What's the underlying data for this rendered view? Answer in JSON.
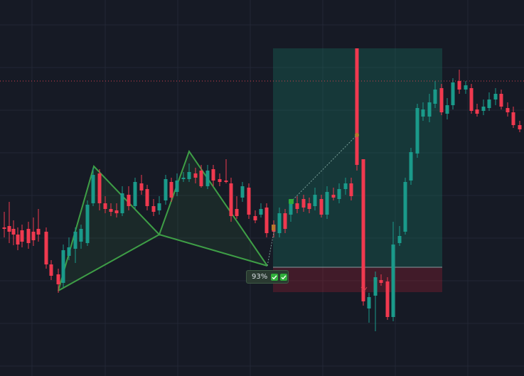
{
  "badge": {
    "confidence_label": "93%"
  },
  "icons": {
    "check": "check-icon",
    "pattern_marker": "pattern-marker-icon"
  },
  "colors": {
    "background": "#161a25",
    "grid": "#222735",
    "bull": "#1a9a8a",
    "bear": "#f0394f",
    "pattern_line": "#3e9e46",
    "pattern_fill": "rgba(62,158,70,0.12)",
    "target_zone": "rgba(26,120,100,0.32)",
    "stop_zone": "rgba(160,30,50,0.32)",
    "price_line": "#d4424f"
  }
}
